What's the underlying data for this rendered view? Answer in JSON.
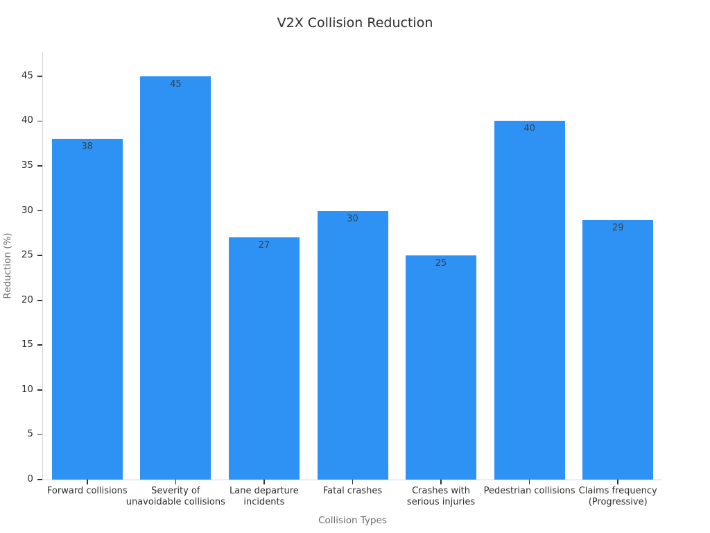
{
  "chart_data": {
    "type": "bar",
    "title": "V2X Collision Reduction",
    "xlabel": "Collision Types",
    "ylabel": "Reduction (%)",
    "categories": [
      "Forward collisions",
      "Severity of\nunavoidable collisions",
      "Lane departure\nincidents",
      "Fatal crashes",
      "Crashes with\nserious injuries",
      "Pedestrian collisions",
      "Claims frequency\n(Progressive)"
    ],
    "values": [
      38,
      45,
      27,
      30,
      25,
      40,
      29
    ],
    "value_labels": [
      "38",
      "45",
      "27",
      "30",
      "25",
      "40",
      "29"
    ],
    "yticks": [
      0,
      5,
      10,
      15,
      20,
      25,
      30,
      35,
      40,
      45
    ],
    "ylim": [
      0,
      47.7
    ],
    "grid": "off",
    "legend": "none",
    "bar_color": "#2e92f4",
    "spine_color": "#d6d6d6",
    "tick_color": "#333333",
    "tick_label_color": "#2e2e2e",
    "axis_label_color": "#6b6b6b",
    "title_color": "#2d2d2d",
    "value_label_color": "#37424c",
    "background_color": "#ffffff"
  }
}
